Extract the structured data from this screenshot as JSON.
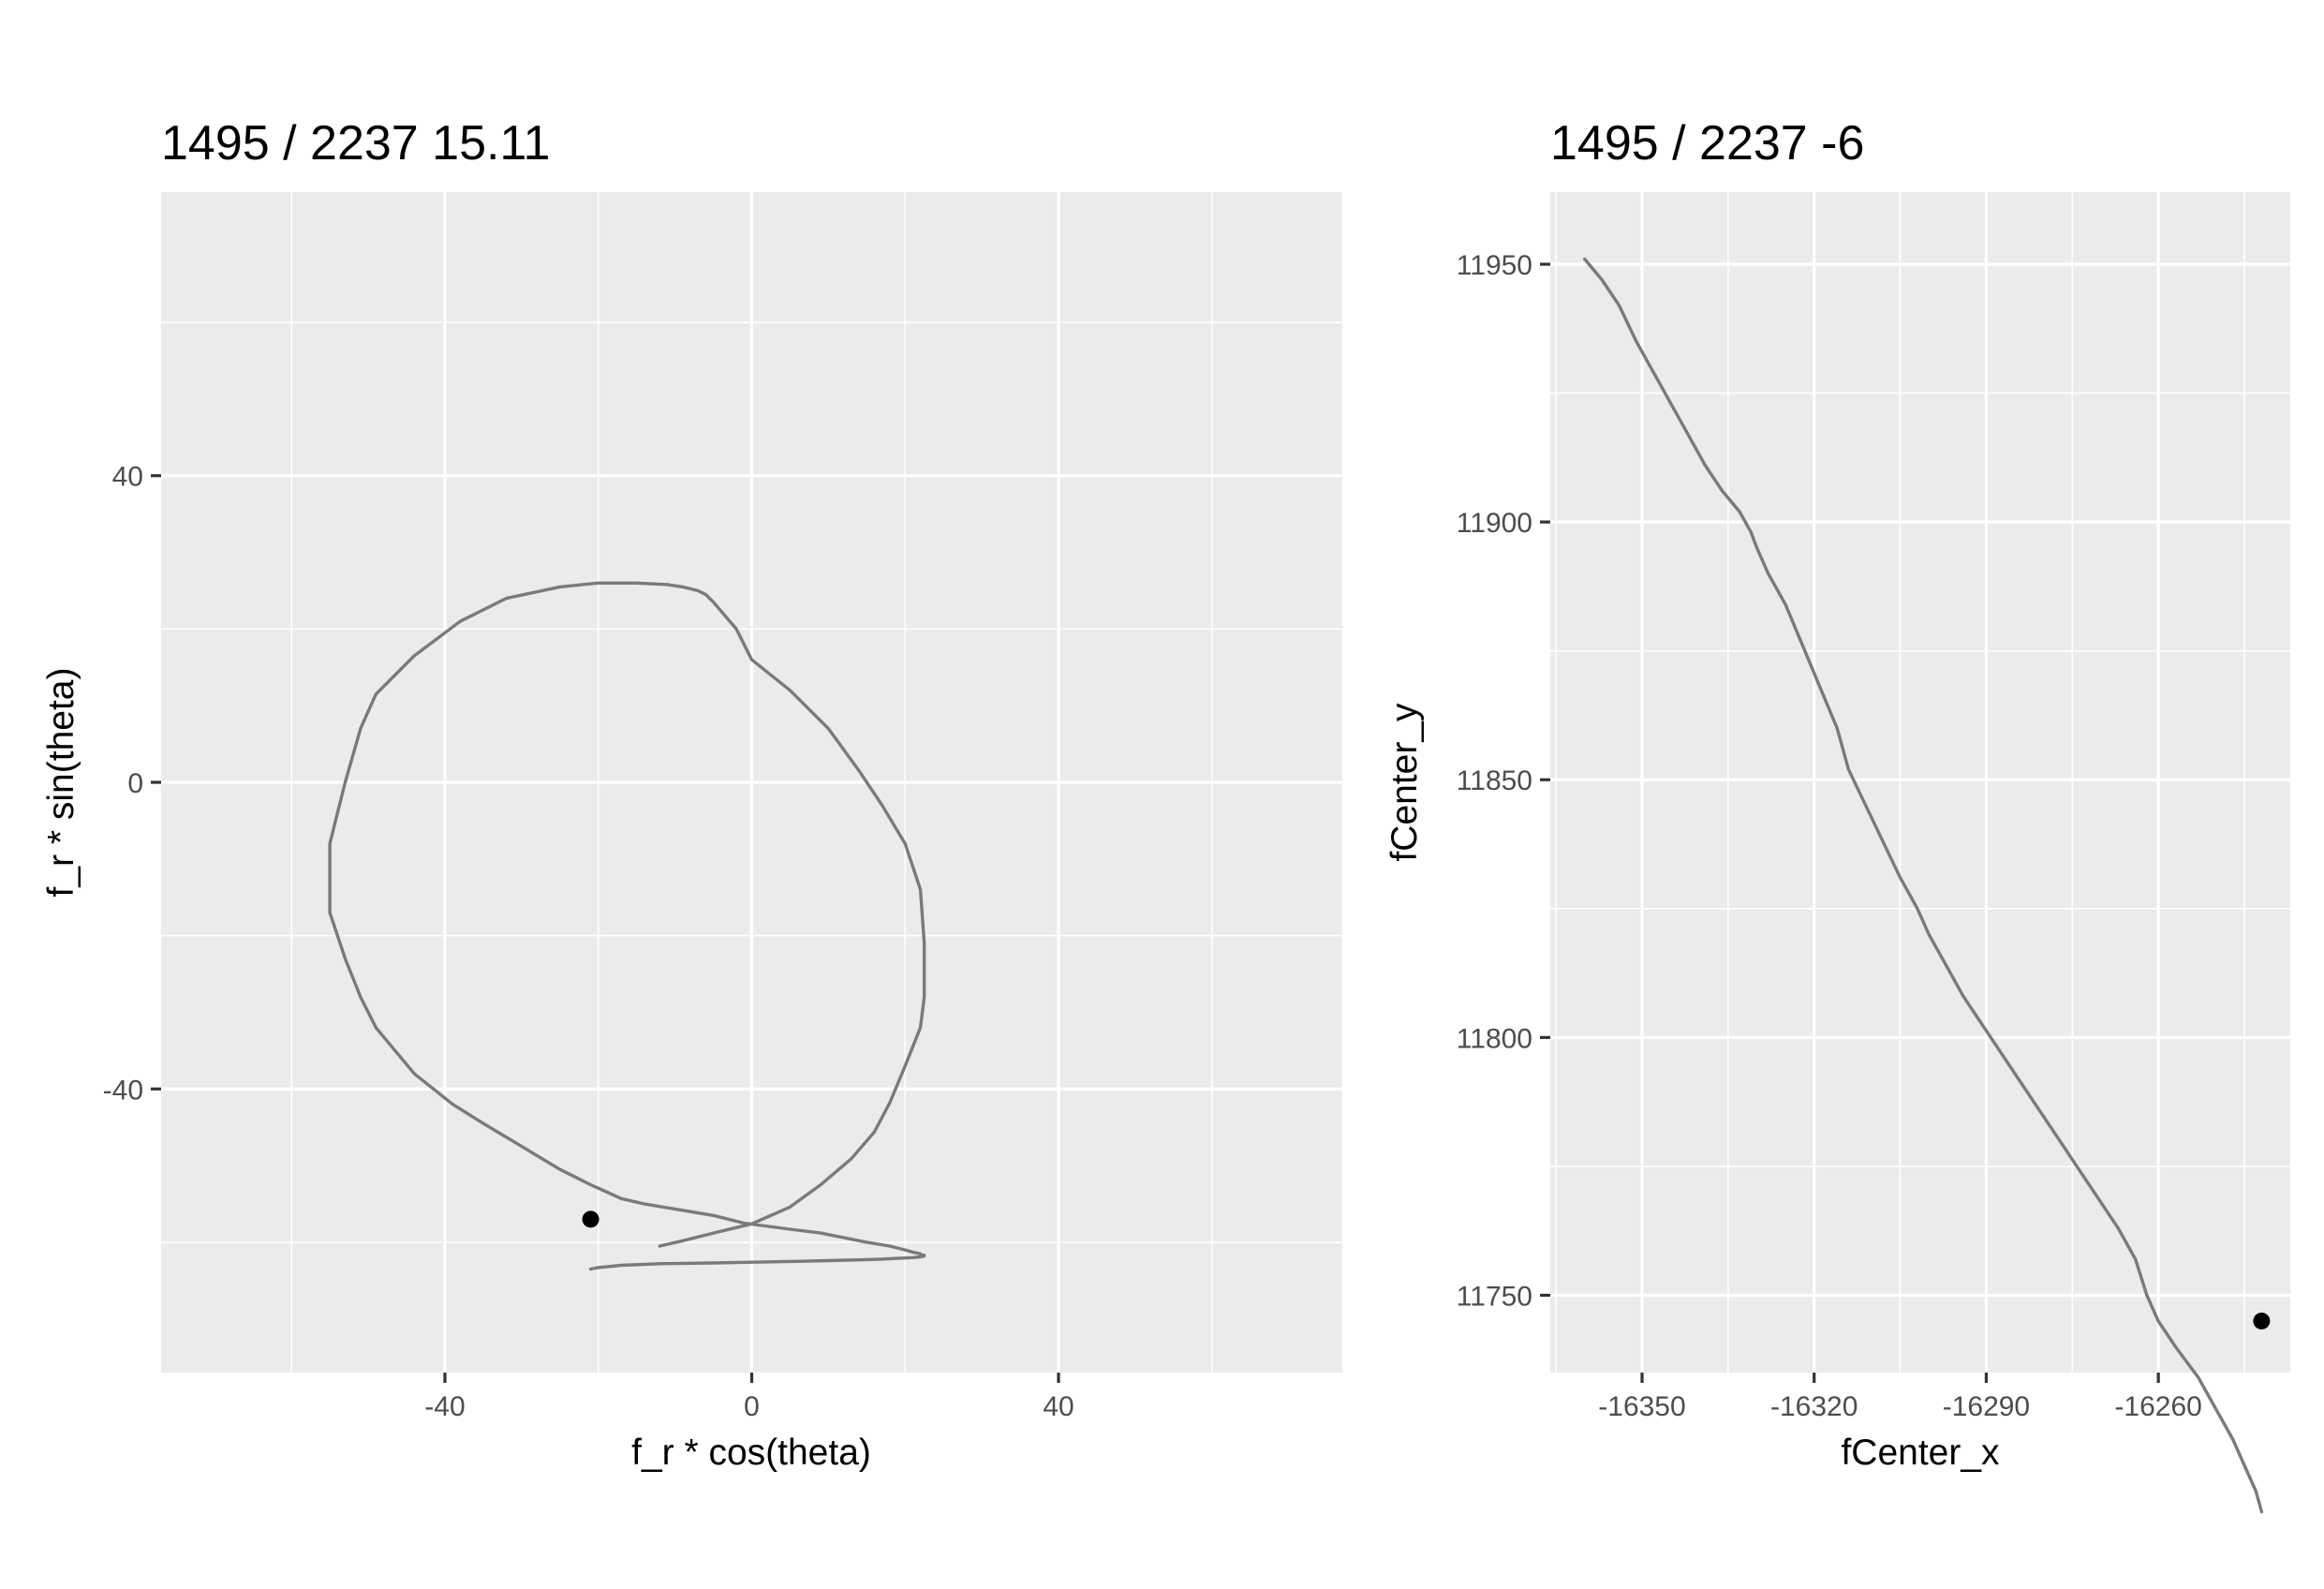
{
  "chart_data": [
    {
      "type": "line",
      "title": "1495 / 2237 15.11",
      "xlabel": "f_r * cos(theta)",
      "ylabel": "f_r * sin(theta)",
      "xlim": [
        -77,
        77
      ],
      "ylim": [
        -77,
        77
      ],
      "x_ticks": [
        -40,
        0,
        40
      ],
      "x_tick_labels": [
        "-40",
        "0",
        "40"
      ],
      "x_minor_ticks": [
        -60,
        -20,
        20,
        60
      ],
      "y_ticks": [
        -40,
        0,
        40
      ],
      "y_tick_labels": [
        "-40",
        "0",
        "40"
      ],
      "y_minor_ticks": [
        -60,
        -20,
        20,
        60
      ],
      "grid": true,
      "series": [
        {
          "x": [
            -12,
            -9,
            -5,
            0,
            5,
            9,
            13,
            16,
            18,
            20,
            22,
            22.5,
            22.5,
            22,
            20,
            17,
            14,
            10,
            5,
            0,
            -2,
            -5,
            -6,
            -7,
            -9,
            -11,
            -15,
            -20,
            -25,
            -32,
            -38,
            -44,
            -49,
            -51,
            -52,
            -53,
            -54,
            -55,
            -55,
            -55,
            -54,
            -53,
            -51,
            -49,
            -44,
            -39,
            -35,
            -30,
            -25,
            -21,
            -17,
            -14,
            -8,
            -5,
            -1,
            5,
            9,
            12,
            15,
            18,
            20,
            21,
            22,
            22,
            22.5,
            22.5,
            22,
            21,
            19,
            17,
            14,
            10,
            5,
            0,
            -5,
            -12,
            -17,
            -20,
            -21
          ],
          "y": [
            -60.5,
            -59.8,
            -58.8,
            -57.6,
            -55.4,
            -52.5,
            -49.1,
            -45.6,
            -41.8,
            -37,
            -32,
            -28,
            -21,
            -14,
            -8,
            -3,
            1.5,
            7,
            12,
            16,
            20,
            23.5,
            24.5,
            25,
            25.5,
            25.8,
            26,
            26,
            25.5,
            24,
            21,
            16.5,
            11.5,
            7,
            3.5,
            0,
            -4,
            -8,
            -12,
            -17,
            -20,
            -23,
            -28,
            -32,
            -38,
            -42,
            -44.5,
            -47.5,
            -50.5,
            -52.5,
            -54.3,
            -55,
            -56,
            -56.5,
            -57.5,
            -58.3,
            -58.8,
            -59.4,
            -60,
            -60.5,
            -61,
            -61.3,
            -61.5,
            -61.6,
            -61.7,
            -61.8,
            -61.9,
            -62,
            -62.1,
            -62.2,
            -62.3,
            -62.4,
            -62.5,
            -62.6,
            -62.7,
            -62.8,
            -63,
            -63.3,
            -63.5
          ]
        }
      ],
      "marker": {
        "x": -21,
        "y": -57
      }
    },
    {
      "type": "line",
      "title": "1495 / 2237 -6",
      "xlabel": "fCenter_x",
      "ylabel": "fCenter_y",
      "xlim": [
        -16366,
        -16237
      ],
      "ylim": [
        11735,
        11964
      ],
      "x_ticks": [
        -16350,
        -16320,
        -16290,
        -16260
      ],
      "x_tick_labels": [
        "-16350",
        "-16320",
        "-16290",
        "-16260"
      ],
      "x_minor_ticks": [
        -16365,
        -16335,
        -16305,
        -16275,
        -16245
      ],
      "y_ticks": [
        11750,
        11800,
        11850,
        11900,
        11950
      ],
      "y_tick_labels": [
        "11750",
        "11800",
        "11850",
        "11900",
        "11950"
      ],
      "y_minor_ticks": [
        11775,
        11825,
        11875,
        11925
      ],
      "grid": true,
      "series": [
        {
          "x": [
            -16360,
            -16357,
            -16354,
            -16351,
            -16347,
            -16343,
            -16339,
            -16336,
            -16333,
            -16331,
            -16330,
            -16328,
            -16325,
            -16322,
            -16319,
            -16316,
            -16314,
            -16311,
            -16308,
            -16305,
            -16302,
            -16300,
            -16297,
            -16294,
            -16291,
            -16288,
            -16285,
            -16282,
            -16279,
            -16276,
            -16273,
            -16270,
            -16267,
            -16264,
            -16262,
            -16260,
            -16257,
            -16253,
            -16250,
            -16247,
            -16245,
            -16243,
            -16242
          ],
          "y": [
            11951,
            11947,
            11942,
            11935,
            11927,
            11919,
            11911,
            11906,
            11902,
            11898,
            11895,
            11890,
            11884,
            11876,
            11868,
            11860,
            11852,
            11845,
            11838,
            11831,
            11825,
            11820,
            11814,
            11808,
            11803,
            11798,
            11793,
            11788,
            11783,
            11778,
            11773,
            11768,
            11763,
            11757,
            11750,
            11745,
            11740,
            11734,
            11728,
            11722,
            11717,
            11712,
            11708
          ]
        }
      ],
      "marker": {
        "x": -16242,
        "y": 11745
      }
    }
  ]
}
